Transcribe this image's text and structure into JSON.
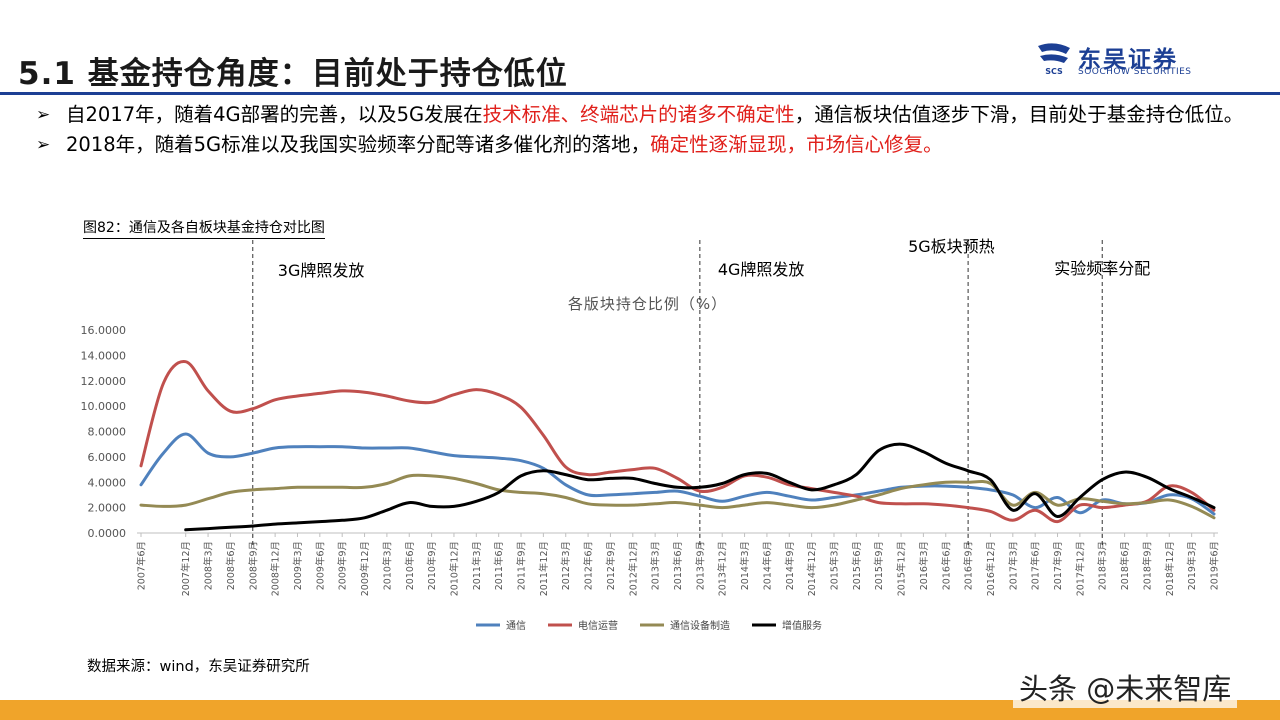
{
  "slide": {
    "title": "5.1 基金持仓角度：目前处于持仓低位",
    "logo_cn": "东吴证券",
    "logo_en": "SOOCHOW SECURITIES",
    "logo_mark": "SCS"
  },
  "bullets": [
    {
      "marker": "➢",
      "segments": [
        {
          "text": "自2017年，随着4G部署的完善，以及5G发展在",
          "emphasis": false
        },
        {
          "text": "技术标准、终端芯片的诸多不确定性",
          "emphasis": true
        },
        {
          "text": "，通信板块估值逐步下滑，目前处于基金持仓低位。",
          "emphasis": false
        }
      ]
    },
    {
      "marker": "➢",
      "segments": [
        {
          "text": "2018年，随着5G标准以及我国实验频率分配等诸多催化剂的落地，",
          "emphasis": false
        },
        {
          "text": "确定性逐渐显现，市场信心修复。",
          "emphasis": true
        }
      ]
    }
  ],
  "emphasis_color": "#e0201b",
  "figure_label": "图82：通信及各自板块基金持仓对比图",
  "source": "数据来源：wind，东吴证券研究所",
  "watermark": "头条 @未来智库",
  "chart_data": {
    "type": "line",
    "title": "各版块持仓比例（%）",
    "x": [
      "2007年6月",
      "2007年9月",
      "2007年12月",
      "2008年3月",
      "2008年6月",
      "2008年9月",
      "2008年12月",
      "2009年3月",
      "2009年6月",
      "2009年9月",
      "2009年12月",
      "2010年3月",
      "2010年6月",
      "2010年9月",
      "2010年12月",
      "2011年3月",
      "2011年6月",
      "2011年9月",
      "2011年12月",
      "2012年3月",
      "2012年6月",
      "2012年9月",
      "2012年12月",
      "2013年3月",
      "2013年6月",
      "2013年9月",
      "2013年12月",
      "2014年3月",
      "2014年6月",
      "2014年9月",
      "2014年12月",
      "2015年3月",
      "2015年6月",
      "2015年9月",
      "2015年12月",
      "2016年3月",
      "2016年6月",
      "2016年9月",
      "2016年12月",
      "2017年3月",
      "2017年6月",
      "2017年9月",
      "2017年12月",
      "2018年3月",
      "2018年6月",
      "2018年9月",
      "2018年12月",
      "2019年3月",
      "2019年6月"
    ],
    "x_tick_labels": [
      "2007年6月",
      "2007年12月",
      "2008年3月",
      "2008年6月",
      "2008年9月",
      "2008年12月",
      "2009年3月",
      "2009年6月",
      "2009年9月",
      "2009年12月",
      "2010年3月",
      "2010年6月",
      "2010年9月",
      "2010年12月",
      "2011年3月",
      "2011年6月",
      "2011年9月",
      "2011年12月",
      "2012年3月",
      "2012年6月",
      "2012年9月",
      "2012年12月",
      "2013年3月",
      "2013年6月",
      "2013年9月",
      "2013年12月",
      "2014年3月",
      "2014年6月",
      "2014年9月",
      "2014年12月",
      "2015年3月",
      "2015年6月",
      "2015年9月",
      "2015年12月",
      "2016年3月",
      "2016年6月",
      "2016年9月",
      "2016年12月",
      "2017年3月",
      "2017年6月",
      "2017年9月",
      "2017年12月",
      "2018年3月",
      "2018年6月",
      "2018年9月",
      "2018年12月",
      "2019年3月",
      "2019年6月"
    ],
    "ylim": [
      0,
      16
    ],
    "y_ticks": [
      "0.0000",
      "2.0000",
      "4.0000",
      "6.0000",
      "8.0000",
      "10.0000",
      "12.0000",
      "14.0000",
      "16.0000"
    ],
    "grid": false,
    "legend_position": "bottom",
    "series": [
      {
        "name": "通信",
        "color": "#4f81bd",
        "values": [
          3.8,
          6.3,
          7.8,
          6.3,
          6.0,
          6.3,
          6.7,
          6.8,
          6.8,
          6.8,
          6.7,
          6.7,
          6.7,
          6.4,
          6.1,
          6.0,
          5.9,
          5.7,
          5.1,
          3.8,
          3.0,
          3.0,
          3.1,
          3.2,
          3.3,
          2.9,
          2.5,
          2.9,
          3.2,
          2.9,
          2.6,
          2.8,
          3.0,
          3.3,
          3.6,
          3.7,
          3.7,
          3.6,
          3.4,
          3.0,
          2.0,
          2.8,
          1.6,
          2.6,
          2.3,
          2.4,
          3.0,
          2.7,
          1.5
        ]
      },
      {
        "name": "电信运营",
        "color": "#c0504d",
        "values": [
          5.3,
          11.8,
          13.5,
          11.2,
          9.6,
          9.8,
          10.5,
          10.8,
          11.0,
          11.2,
          11.1,
          10.8,
          10.4,
          10.3,
          10.9,
          11.3,
          10.9,
          9.9,
          7.7,
          5.2,
          4.6,
          4.8,
          5.0,
          5.1,
          4.3,
          3.3,
          3.6,
          4.5,
          4.4,
          3.8,
          3.5,
          3.2,
          2.9,
          2.4,
          2.3,
          2.3,
          2.2,
          2.0,
          1.7,
          1.0,
          1.8,
          0.9,
          2.2,
          2.0,
          2.2,
          2.5,
          3.7,
          3.2,
          1.8
        ]
      },
      {
        "name": "通信设备制造",
        "color": "#948a54",
        "values": [
          2.2,
          2.1,
          2.2,
          2.7,
          3.2,
          3.4,
          3.5,
          3.6,
          3.6,
          3.6,
          3.6,
          3.9,
          4.5,
          4.5,
          4.3,
          3.9,
          3.4,
          3.2,
          3.1,
          2.8,
          2.3,
          2.2,
          2.2,
          2.3,
          2.4,
          2.2,
          2.0,
          2.2,
          2.4,
          2.2,
          2.0,
          2.2,
          2.6,
          3.0,
          3.5,
          3.8,
          4.0,
          4.0,
          3.9,
          2.2,
          3.2,
          2.2,
          2.7,
          2.5,
          2.3,
          2.4,
          2.6,
          2.1,
          1.2
        ]
      },
      {
        "name": "增值服务",
        "color": "#000000",
        "values": [
          null,
          null,
          0.25,
          0.35,
          0.45,
          0.55,
          0.7,
          0.8,
          0.9,
          1.0,
          1.2,
          1.8,
          2.4,
          2.1,
          2.1,
          2.5,
          3.2,
          4.5,
          4.9,
          4.6,
          4.2,
          4.3,
          4.3,
          3.9,
          3.6,
          3.6,
          3.9,
          4.6,
          4.7,
          4.0,
          3.4,
          3.8,
          4.6,
          6.5,
          7.0,
          6.4,
          5.5,
          4.9,
          4.2,
          1.8,
          3.1,
          1.3,
          2.8,
          4.2,
          4.8,
          4.4,
          3.5,
          2.8,
          2.0
        ]
      }
    ],
    "annotations": [
      {
        "text": "3G牌照发放",
        "at": "2008年9月"
      },
      {
        "text": "4G牌照发放",
        "at": "2013年9月"
      },
      {
        "text": "5G板块预热",
        "at": "2016年9月"
      },
      {
        "text": "实验频率分配",
        "at": "2018年3月"
      }
    ]
  }
}
